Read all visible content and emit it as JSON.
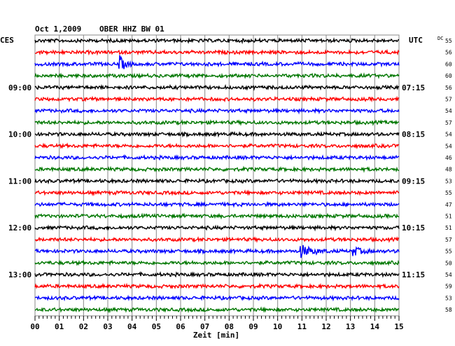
{
  "header": {
    "date": "Oct 1,2009",
    "station": "OBER HHZ BW 01",
    "left_zone": "CES",
    "right_zone": "UTC",
    "dc_label": "DC"
  },
  "chart_data": {
    "type": "line",
    "title": "Oct 1,2009   OBER HHZ BW 01",
    "xlabel": "Zeit [min]",
    "x_ticks": [
      "00",
      "01",
      "02",
      "03",
      "04",
      "05",
      "06",
      "07",
      "08",
      "09",
      "10",
      "11",
      "12",
      "13",
      "14",
      "15"
    ],
    "xlim": [
      0,
      15
    ],
    "left_time_labels": [
      {
        "row": 4,
        "text": "09:00"
      },
      {
        "row": 8,
        "text": "10:00"
      },
      {
        "row": 12,
        "text": "11:00"
      },
      {
        "row": 16,
        "text": "12:00"
      },
      {
        "row": 20,
        "text": "13:00"
      }
    ],
    "right_time_labels": [
      {
        "row": 4,
        "text": "07:15"
      },
      {
        "row": 8,
        "text": "08:15"
      },
      {
        "row": 12,
        "text": "09:15"
      },
      {
        "row": 16,
        "text": "10:15"
      },
      {
        "row": 20,
        "text": "11:15"
      }
    ],
    "trace_colors": [
      "#000000",
      "#ff0000",
      "#0000ff",
      "#007700"
    ],
    "dc_offsets": [
      55,
      56,
      60,
      60,
      56,
      57,
      54,
      57,
      54,
      54,
      46,
      48,
      53,
      55,
      47,
      51,
      51,
      57,
      55,
      50,
      54,
      59,
      53,
      58
    ],
    "events": [
      {
        "row": 2,
        "minute": 3.5,
        "width": 0.6,
        "amplitude": 10
      },
      {
        "row": 18,
        "minute": 10.9,
        "width": 1.3,
        "amplitude": 9
      },
      {
        "row": 18,
        "minute": 13.1,
        "width": 0.9,
        "amplitude": 6
      }
    ]
  }
}
